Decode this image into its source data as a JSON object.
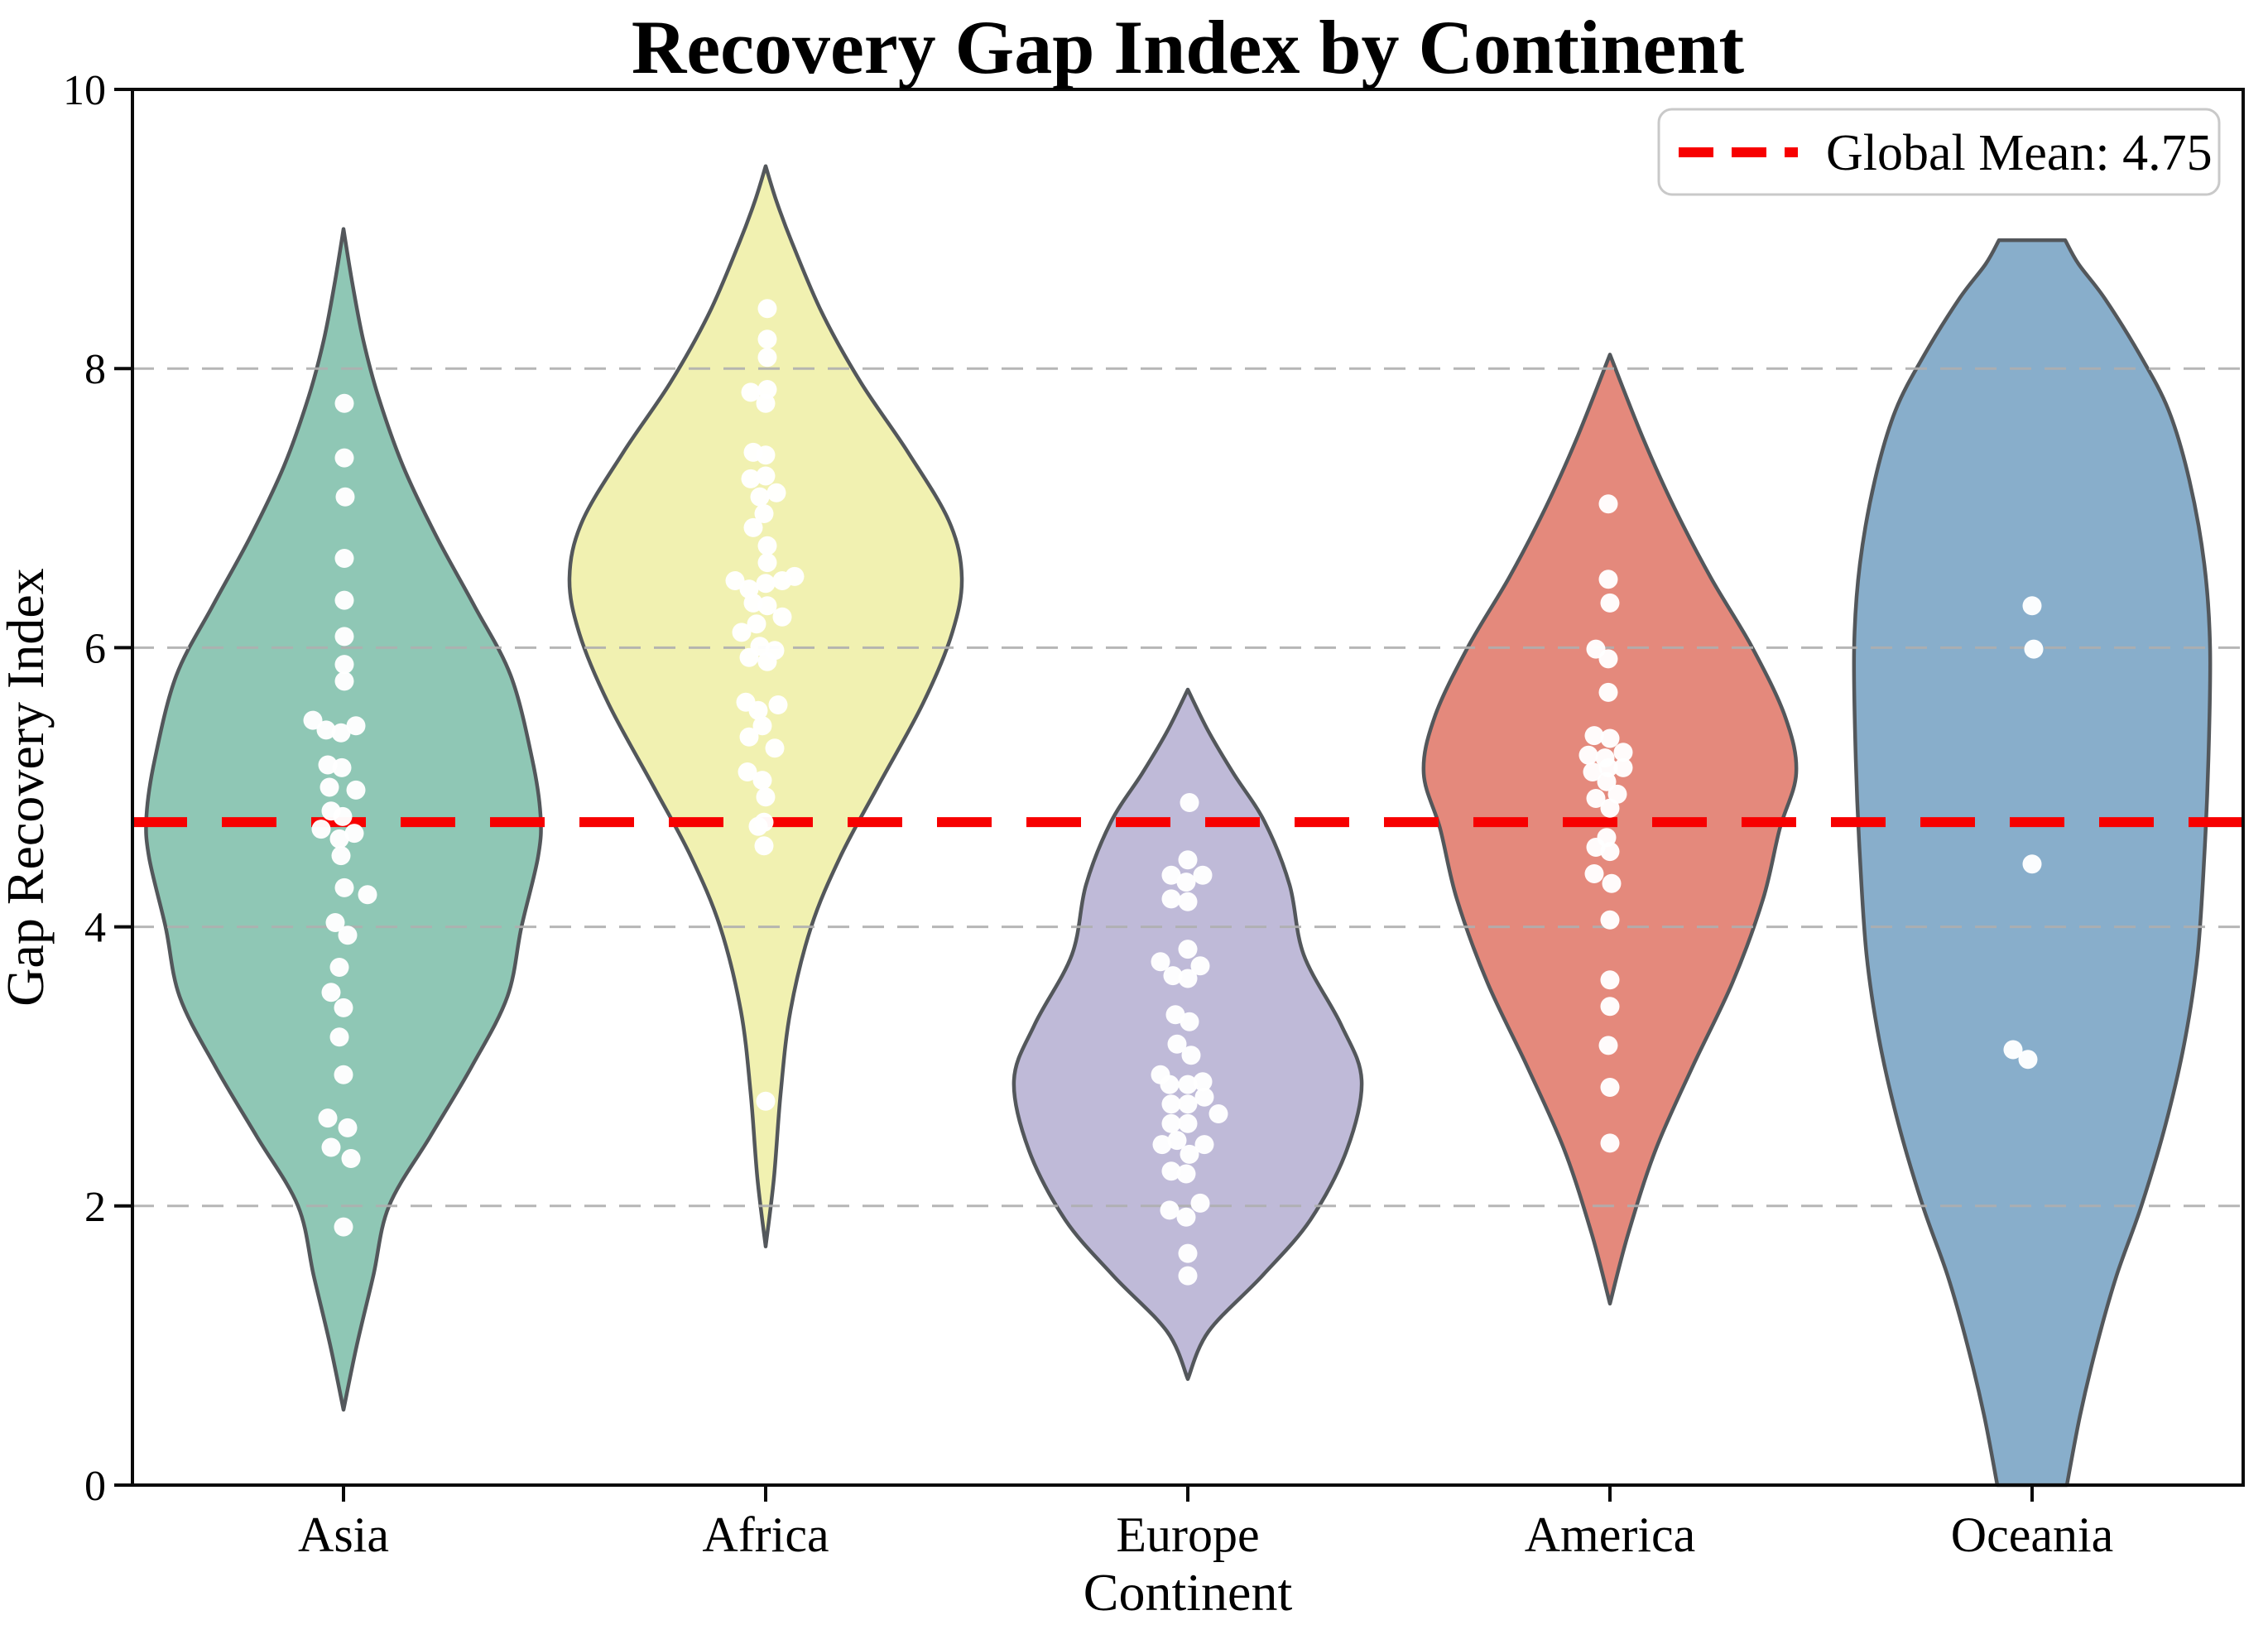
{
  "title": "Recovery Gap Index by Continent",
  "legend": {
    "label": "Global Mean: 4.75"
  },
  "chart_data": {
    "type": "violin",
    "title": "Recovery Gap Index by Continent",
    "xlabel": "Continent",
    "ylabel": "Gap Recovery Index",
    "ylim": [
      0,
      10
    ],
    "yticks": [
      0,
      2,
      4,
      6,
      8,
      10
    ],
    "grid_values": [
      2,
      4,
      6,
      8
    ],
    "grid_on": true,
    "legend_position": "upper right",
    "global_mean": 4.75,
    "categories": [
      "Asia",
      "Africa",
      "Europe",
      "America",
      "Oceania"
    ],
    "style": {
      "mean_line_color": "#F70000",
      "grid_color": "#AFAFAF",
      "frame_color": "#0A0A0A",
      "violin_stroke": "#53575B",
      "dot_color": "#FFFFFF",
      "legend_border": "#C9C9C9",
      "legend_fill": "#FFFFFF"
    },
    "series": [
      {
        "name": "Asia",
        "fill": "#8FC7B5",
        "range": [
          0.54,
          9.0
        ],
        "profile": [
          [
            0.54,
            0
          ],
          [
            1.0,
            16
          ],
          [
            1.5,
            36
          ],
          [
            2.0,
            55
          ],
          [
            2.5,
            105
          ],
          [
            3.0,
            155
          ],
          [
            3.5,
            198
          ],
          [
            4.0,
            215
          ],
          [
            4.5,
            235
          ],
          [
            4.8,
            238
          ],
          [
            5.2,
            228
          ],
          [
            5.8,
            202
          ],
          [
            6.3,
            158
          ],
          [
            6.8,
            112
          ],
          [
            7.3,
            72
          ],
          [
            7.8,
            42
          ],
          [
            8.2,
            24
          ],
          [
            8.6,
            11
          ],
          [
            9.0,
            0
          ]
        ],
        "points": [
          [
            7.75,
            1
          ],
          [
            7.36,
            1
          ],
          [
            7.08,
            2
          ],
          [
            6.64,
            1
          ],
          [
            6.34,
            1
          ],
          [
            6.08,
            1
          ],
          [
            5.88,
            1
          ],
          [
            5.76,
            1
          ],
          [
            5.48,
            -37
          ],
          [
            5.44,
            15
          ],
          [
            5.41,
            -21
          ],
          [
            5.39,
            -3
          ],
          [
            5.16,
            -19
          ],
          [
            5.14,
            -2
          ],
          [
            5.0,
            -17
          ],
          [
            4.98,
            15
          ],
          [
            4.83,
            -15
          ],
          [
            4.79,
            -1
          ],
          [
            4.7,
            -27
          ],
          [
            4.67,
            13
          ],
          [
            4.63,
            -5
          ],
          [
            4.51,
            -3
          ],
          [
            4.28,
            1
          ],
          [
            4.23,
            29
          ],
          [
            4.03,
            -10
          ],
          [
            3.94,
            5
          ],
          [
            3.71,
            -5
          ],
          [
            3.53,
            -15
          ],
          [
            3.42,
            0
          ],
          [
            3.21,
            -5
          ],
          [
            2.94,
            0
          ],
          [
            2.63,
            -19
          ],
          [
            2.56,
            5
          ],
          [
            2.42,
            -15
          ],
          [
            2.34,
            9
          ],
          [
            1.85,
            0
          ]
        ]
      },
      {
        "name": "Africa",
        "fill": "#F1F1B1",
        "range": [
          1.71,
          9.45
        ],
        "profile": [
          [
            1.71,
            0
          ],
          [
            2.2,
            10
          ],
          [
            2.8,
            18
          ],
          [
            3.4,
            30
          ],
          [
            4.0,
            55
          ],
          [
            4.5,
            90
          ],
          [
            5.0,
            135
          ],
          [
            5.6,
            190
          ],
          [
            6.1,
            225
          ],
          [
            6.5,
            237
          ],
          [
            6.9,
            222
          ],
          [
            7.4,
            172
          ],
          [
            7.9,
            115
          ],
          [
            8.4,
            68
          ],
          [
            8.9,
            32
          ],
          [
            9.2,
            13
          ],
          [
            9.45,
            0
          ]
        ],
        "points": [
          [
            8.43,
            2
          ],
          [
            8.21,
            2
          ],
          [
            8.08,
            2
          ],
          [
            7.85,
            2
          ],
          [
            7.83,
            -18
          ],
          [
            7.75,
            0
          ],
          [
            7.4,
            -15
          ],
          [
            7.38,
            0
          ],
          [
            7.23,
            0
          ],
          [
            7.21,
            -18
          ],
          [
            7.11,
            13
          ],
          [
            7.08,
            -7
          ],
          [
            6.96,
            -2
          ],
          [
            6.86,
            -15
          ],
          [
            6.73,
            2
          ],
          [
            6.61,
            2
          ],
          [
            6.51,
            35
          ],
          [
            6.48,
            -37
          ],
          [
            6.48,
            20
          ],
          [
            6.46,
            0
          ],
          [
            6.42,
            -20
          ],
          [
            6.32,
            -15
          ],
          [
            6.3,
            2
          ],
          [
            6.22,
            20
          ],
          [
            6.17,
            -11
          ],
          [
            6.11,
            -29
          ],
          [
            6.01,
            -7
          ],
          [
            5.98,
            11
          ],
          [
            5.93,
            -20
          ],
          [
            5.9,
            2
          ],
          [
            5.61,
            -24
          ],
          [
            5.59,
            15
          ],
          [
            5.55,
            -9
          ],
          [
            5.44,
            -4
          ],
          [
            5.36,
            -20
          ],
          [
            5.28,
            11
          ],
          [
            5.11,
            -22
          ],
          [
            5.05,
            -4
          ],
          [
            4.93,
            0
          ],
          [
            4.75,
            -2
          ],
          [
            4.72,
            -9
          ],
          [
            4.58,
            -2
          ],
          [
            2.75,
            0
          ]
        ]
      },
      {
        "name": "Europe",
        "fill": "#BFBAD8",
        "range": [
          0.76,
          5.7
        ],
        "profile": [
          [
            0.76,
            0
          ],
          [
            1.1,
            25
          ],
          [
            1.5,
            90
          ],
          [
            1.9,
            148
          ],
          [
            2.4,
            192
          ],
          [
            2.9,
            210
          ],
          [
            3.3,
            185
          ],
          [
            3.8,
            140
          ],
          [
            4.3,
            123
          ],
          [
            4.75,
            93
          ],
          [
            5.1,
            55
          ],
          [
            5.4,
            25
          ],
          [
            5.7,
            0
          ]
        ],
        "points": [
          [
            4.89,
            2
          ],
          [
            4.48,
            0
          ],
          [
            4.37,
            -20
          ],
          [
            4.37,
            18
          ],
          [
            4.32,
            -2
          ],
          [
            4.2,
            -20
          ],
          [
            4.18,
            0
          ],
          [
            3.84,
            0
          ],
          [
            3.75,
            -33
          ],
          [
            3.72,
            15
          ],
          [
            3.65,
            -18
          ],
          [
            3.63,
            0
          ],
          [
            3.37,
            -15
          ],
          [
            3.32,
            2
          ],
          [
            3.16,
            -13
          ],
          [
            3.08,
            4
          ],
          [
            2.94,
            -33
          ],
          [
            2.89,
            18
          ],
          [
            2.87,
            -22
          ],
          [
            2.87,
            0
          ],
          [
            2.78,
            20
          ],
          [
            2.73,
            -20
          ],
          [
            2.73,
            0
          ],
          [
            2.66,
            37
          ],
          [
            2.59,
            -20
          ],
          [
            2.59,
            0
          ],
          [
            2.47,
            -13
          ],
          [
            2.44,
            -31
          ],
          [
            2.44,
            20
          ],
          [
            2.37,
            2
          ],
          [
            2.25,
            -20
          ],
          [
            2.23,
            -2
          ],
          [
            2.02,
            15
          ],
          [
            1.97,
            -22
          ],
          [
            1.92,
            -2
          ],
          [
            1.66,
            0
          ],
          [
            1.5,
            0
          ]
        ]
      },
      {
        "name": "America",
        "fill": "#E4897C",
        "range": [
          1.3,
          8.1
        ],
        "profile": [
          [
            1.3,
            0
          ],
          [
            1.8,
            22
          ],
          [
            2.4,
            55
          ],
          [
            3.0,
            100
          ],
          [
            3.6,
            148
          ],
          [
            4.2,
            185
          ],
          [
            4.7,
            205
          ],
          [
            5.1,
            225
          ],
          [
            5.5,
            212
          ],
          [
            6.0,
            172
          ],
          [
            6.5,
            122
          ],
          [
            7.0,
            78
          ],
          [
            7.5,
            40
          ],
          [
            8.1,
            0
          ]
        ],
        "points": [
          [
            7.03,
            -2
          ],
          [
            6.49,
            -2
          ],
          [
            6.32,
            0
          ],
          [
            5.99,
            -17
          ],
          [
            5.92,
            -2
          ],
          [
            5.68,
            -2
          ],
          [
            5.37,
            -19
          ],
          [
            5.35,
            0
          ],
          [
            5.25,
            16
          ],
          [
            5.23,
            -26
          ],
          [
            5.21,
            -6
          ],
          [
            5.14,
            -2
          ],
          [
            5.14,
            16
          ],
          [
            5.11,
            -21
          ],
          [
            5.04,
            -4
          ],
          [
            4.95,
            9
          ],
          [
            4.92,
            -17
          ],
          [
            4.85,
            0
          ],
          [
            4.64,
            -4
          ],
          [
            4.57,
            -17
          ],
          [
            4.54,
            0
          ],
          [
            4.38,
            -19
          ],
          [
            4.31,
            2
          ],
          [
            4.05,
            0
          ],
          [
            3.62,
            0
          ],
          [
            3.43,
            0
          ],
          [
            3.15,
            -2
          ],
          [
            2.85,
            0
          ],
          [
            2.45,
            0
          ]
        ]
      },
      {
        "name": "Oceania",
        "fill": "#88AECB",
        "range": [
          0.0,
          8.92
        ],
        "profile": [
          [
            0,
            42
          ],
          [
            0.5,
            58
          ],
          [
            1.0,
            78
          ],
          [
            1.5,
            102
          ],
          [
            2.0,
            132
          ],
          [
            2.6,
            162
          ],
          [
            3.2,
            185
          ],
          [
            3.8,
            200
          ],
          [
            4.5,
            208
          ],
          [
            5.2,
            213
          ],
          [
            6.0,
            215
          ],
          [
            6.6,
            208
          ],
          [
            7.2,
            190
          ],
          [
            7.7,
            165
          ],
          [
            8.1,
            130
          ],
          [
            8.5,
            88
          ],
          [
            8.75,
            56
          ],
          [
            8.92,
            40
          ]
        ],
        "points": [
          [
            6.3,
            0
          ],
          [
            5.99,
            2
          ],
          [
            4.45,
            0
          ],
          [
            3.12,
            -23
          ],
          [
            3.05,
            -5
          ]
        ]
      }
    ]
  }
}
